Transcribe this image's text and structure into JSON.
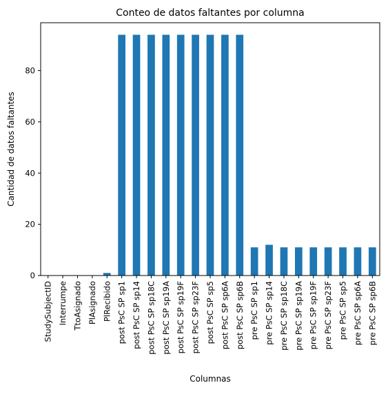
{
  "chart_data": {
    "type": "bar",
    "title": "Conteo de datos faltantes por columna",
    "xlabel": "Columnas",
    "ylabel": "Cantidad de datos faltantes",
    "ylim": [
      0,
      98.7
    ],
    "yticks": [
      0,
      20,
      40,
      60,
      80
    ],
    "grid": false,
    "bar_color": "#1f77b4",
    "categories": [
      "StudySubjectID",
      "Interrumpe",
      "TtoAsignado",
      "PlAsignado",
      "PlRecibido",
      "post PsC SP sp1",
      "post PsC SP sp14",
      "post PsC SP sp18C",
      "post PsC SP sp19A",
      "post PsC SP sp19F",
      "post PsC SP sp23F",
      "post PsC SP sp5",
      "post PsC SP sp6A",
      "post PsC SP sp6B",
      "pre PsC SP sp1",
      "pre PsC SP sp14",
      "pre PsC SP sp18C",
      "pre PsC SP sp19A",
      "pre PsC SP sp19F",
      "pre PsC SP sp23F",
      "pre PsC SP sp5",
      "pre PsC SP sp6A",
      "pre PsC SP sp6B"
    ],
    "values": [
      0,
      0,
      0,
      0,
      1,
      94,
      94,
      94,
      94,
      94,
      94,
      94,
      94,
      94,
      11,
      12,
      11,
      11,
      11,
      11,
      11,
      11,
      11
    ]
  }
}
